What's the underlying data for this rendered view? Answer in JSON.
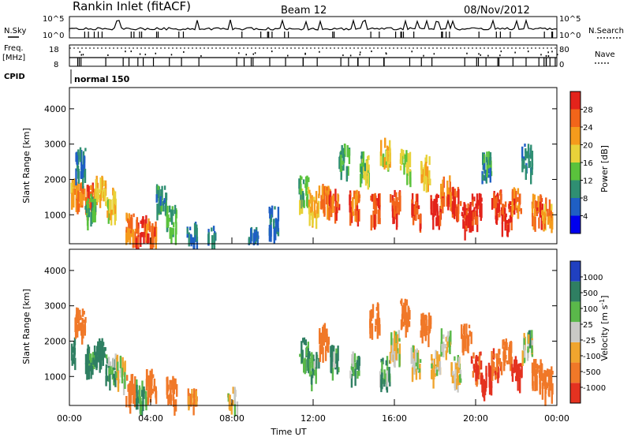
{
  "header": {
    "station": "Rankin Inlet (fitACF)",
    "beam": "Beam 12",
    "date": "08/Nov/2012"
  },
  "status": {
    "nsky_label": "N.Sky",
    "freq_label": "Freq.",
    "freq_unit": "[MHz]",
    "cpid_label": "CPID",
    "nsearch_label": "N.Search",
    "nave_label": "Nave",
    "cpid_value": "normal 150",
    "noise_ticks": [
      "10^5",
      "10^0"
    ],
    "freq_ticks": [
      "18",
      "8"
    ],
    "nave_ticks": [
      "80",
      "0"
    ]
  },
  "axes": {
    "x_ticks": [
      "00:00",
      "04:00",
      "08:00",
      "12:00",
      "16:00",
      "20:00",
      "00:00"
    ],
    "x_label": "Time UT",
    "y_label": "Slant Range [km]",
    "y_ticks": [
      "1000",
      "2000",
      "3000",
      "4000"
    ]
  },
  "colors": {
    "power": [
      "#0000ee",
      "#1f5fc4",
      "#2f8f72",
      "#5ac23c",
      "#e8d23a",
      "#f59b1c",
      "#f2651a",
      "#e3231b"
    ],
    "velocity": [
      "#2040c0",
      "#2f7f62",
      "#5ab84a",
      "#c9c9c6",
      "#f0a52e",
      "#f07828",
      "#e43220"
    ]
  },
  "chart_data": [
    {
      "type": "heatmap",
      "name": "Power",
      "xlabel": "Time UT",
      "ylabel": "Slant Range [km]",
      "xlim": [
        0,
        24
      ],
      "ylim": [
        180,
        4600
      ],
      "colorbar": {
        "label": "Power [dB]",
        "ticks": [
          "28",
          "24",
          "20",
          "16",
          "12",
          "8",
          "4"
        ],
        "range": [
          0,
          32
        ]
      },
      "cells": [
        [
          0.0,
          1700,
          22
        ],
        [
          0.5,
          1600,
          24
        ],
        [
          1.0,
          1500,
          26
        ],
        [
          1.5,
          1700,
          20
        ],
        [
          2.0,
          1400,
          18
        ],
        [
          0.5,
          2500,
          8
        ],
        [
          1.0,
          1200,
          12
        ],
        [
          3.0,
          700,
          24
        ],
        [
          3.5,
          600,
          28
        ],
        [
          4.0,
          500,
          26
        ],
        [
          4.5,
          1500,
          10
        ],
        [
          5.0,
          900,
          12
        ],
        [
          6.0,
          400,
          8
        ],
        [
          7.0,
          300,
          8
        ],
        [
          9.0,
          300,
          6
        ],
        [
          10.0,
          900,
          8
        ],
        [
          11.5,
          1700,
          14
        ],
        [
          12.0,
          1300,
          20
        ],
        [
          12.5,
          1500,
          24
        ],
        [
          13.0,
          1400,
          26
        ],
        [
          13.5,
          2600,
          12
        ],
        [
          14.0,
          1300,
          26
        ],
        [
          14.5,
          2400,
          14
        ],
        [
          15.0,
          1200,
          28
        ],
        [
          15.5,
          2800,
          18
        ],
        [
          16.0,
          1300,
          28
        ],
        [
          16.5,
          2500,
          16
        ],
        [
          17.0,
          1200,
          28
        ],
        [
          17.5,
          2300,
          20
        ],
        [
          18.0,
          1200,
          30
        ],
        [
          18.5,
          1700,
          26
        ],
        [
          19.0,
          1400,
          28
        ],
        [
          19.5,
          1000,
          30
        ],
        [
          20.0,
          1200,
          30
        ],
        [
          20.5,
          2400,
          10
        ],
        [
          21.0,
          1300,
          28
        ],
        [
          21.5,
          1000,
          30
        ],
        [
          22.0,
          1400,
          26
        ],
        [
          22.5,
          2600,
          8
        ],
        [
          23.0,
          1200,
          26
        ],
        [
          23.5,
          1100,
          22
        ]
      ]
    },
    {
      "type": "heatmap",
      "name": "Velocity",
      "xlabel": "Time UT",
      "ylabel": "Slant Range [km]",
      "xlim": [
        0,
        24
      ],
      "ylim": [
        180,
        4600
      ],
      "colorbar": {
        "label": "Velocity [m s-1]",
        "ticks": [
          "1000",
          "500",
          "100",
          "25",
          "-25",
          "-100",
          "-500",
          "-1000"
        ],
        "range": [
          -1200,
          1200
        ]
      },
      "cells": [
        [
          0.0,
          1700,
          300
        ],
        [
          0.5,
          2600,
          -200
        ],
        [
          1.0,
          1500,
          150
        ],
        [
          1.5,
          1700,
          400
        ],
        [
          2.0,
          1300,
          80
        ],
        [
          2.5,
          1200,
          0
        ],
        [
          3.0,
          700,
          -300
        ],
        [
          3.5,
          500,
          100
        ],
        [
          4.0,
          800,
          -250
        ],
        [
          5.0,
          600,
          -200
        ],
        [
          6.0,
          300,
          -150
        ],
        [
          8.0,
          300,
          0
        ],
        [
          11.5,
          1700,
          150
        ],
        [
          12.0,
          1300,
          100
        ],
        [
          12.5,
          2100,
          -300
        ],
        [
          13.0,
          1500,
          80
        ],
        [
          14.0,
          1300,
          60
        ],
        [
          15.0,
          2700,
          -250
        ],
        [
          15.5,
          1200,
          100
        ],
        [
          16.0,
          1900,
          0
        ],
        [
          16.5,
          2800,
          -400
        ],
        [
          17.0,
          1500,
          0
        ],
        [
          17.5,
          2500,
          -300
        ],
        [
          18.0,
          1400,
          0
        ],
        [
          18.5,
          2000,
          0
        ],
        [
          19.0,
          1200,
          0
        ],
        [
          19.5,
          2200,
          -250
        ],
        [
          20.0,
          1300,
          -500
        ],
        [
          20.5,
          1000,
          -600
        ],
        [
          21.0,
          1400,
          -450
        ],
        [
          21.5,
          1700,
          -400
        ],
        [
          22.0,
          1200,
          -550
        ],
        [
          22.5,
          2000,
          30
        ],
        [
          23.0,
          1100,
          -300
        ],
        [
          23.5,
          900,
          -200
        ]
      ]
    }
  ]
}
